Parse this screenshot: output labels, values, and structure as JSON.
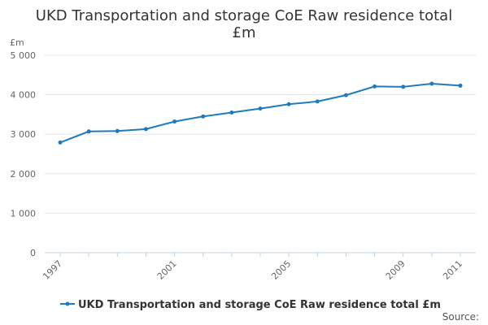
{
  "chart_data": {
    "type": "line",
    "title_line1": "UKD Transportation and storage CoE Raw residence total",
    "title_line2": "£m",
    "ylabel": "£m",
    "ylim": [
      0,
      5000
    ],
    "yticks": [
      0,
      1000,
      2000,
      3000,
      4000,
      5000
    ],
    "ytick_labels": [
      "0",
      "1 000",
      "2 000",
      "3 000",
      "4 000",
      "5 000"
    ],
    "xlim": [
      1997,
      2011
    ],
    "xticks": [
      1997,
      2001,
      2005,
      2009,
      2011
    ],
    "xtick_labels": [
      "1997",
      "2001",
      "2005",
      "2009",
      "2011"
    ],
    "series": [
      {
        "name": "UKD Transportation and storage CoE Raw residence total £m",
        "color": "#1f7bc0",
        "x": [
          1997,
          1998,
          1999,
          2000,
          2001,
          2002,
          2003,
          2004,
          2005,
          2006,
          2007,
          2008,
          2009,
          2010,
          2011
        ],
        "values": [
          2790,
          3070,
          3080,
          3130,
          3320,
          3450,
          3550,
          3650,
          3760,
          3830,
          3990,
          4210,
          4200,
          4280,
          4230
        ]
      }
    ],
    "grid": true,
    "legend_position": "bottom",
    "source_label": "Source:"
  }
}
